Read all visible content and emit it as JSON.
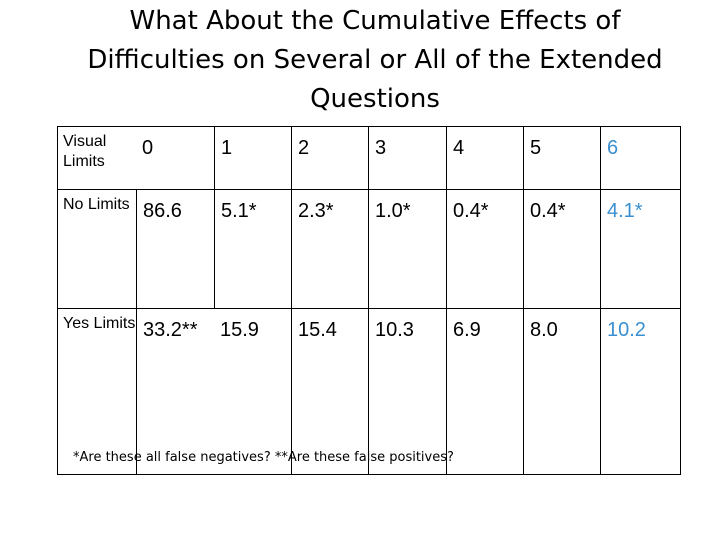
{
  "title": {
    "line1": "What About the Cumulative Effects of",
    "line2": "Difficulties on Several or All of the Extended",
    "line3": "Questions"
  },
  "table": {
    "header": {
      "label": "Visual Limits",
      "cells": [
        "0",
        "1",
        "2",
        "3",
        "4",
        "5",
        "6"
      ]
    },
    "rows": [
      {
        "label": "No Limits",
        "cells": [
          "86.6",
          "5.1*",
          "2.3*",
          "1.0*",
          "0.4*",
          "0.4*",
          "4.1*"
        ]
      },
      {
        "label": "Yes Limits",
        "cells": [
          "33.2**",
          "15.9",
          "15.4",
          "10.3",
          "6.9",
          "8.0",
          "10.2"
        ]
      }
    ],
    "highlight_color": "#3a8fd0"
  },
  "footnote": "*Are these all false negatives?  **Are these false positives?"
}
